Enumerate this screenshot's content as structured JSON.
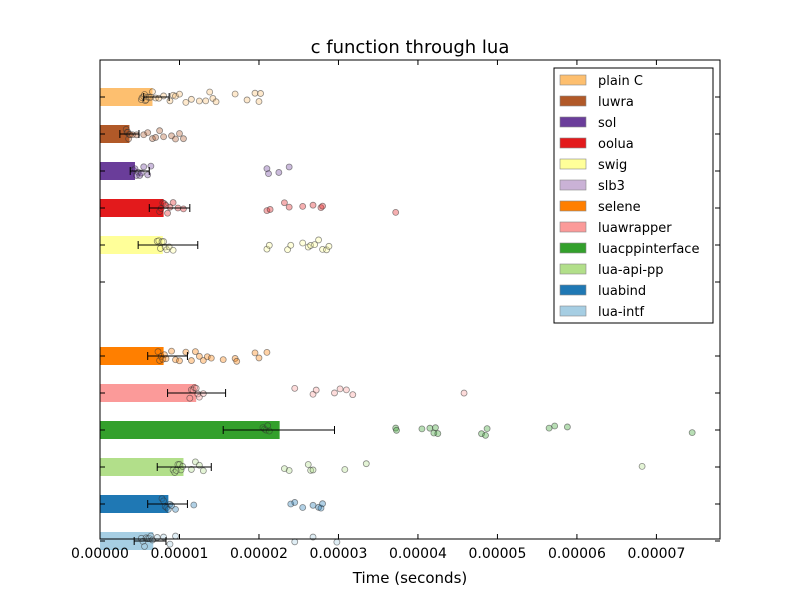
{
  "chart_data": {
    "type": "bar",
    "orientation": "horizontal",
    "title": "c function through lua",
    "xlabel": "Time (seconds)",
    "ylabel": "",
    "xlim": [
      0,
      7.8e-05
    ],
    "x_ticks": [
      0,
      1e-05,
      2e-05,
      3e-05,
      4e-05,
      5e-05,
      6e-05,
      7e-05
    ],
    "x_tick_labels": [
      "0.00000",
      "0.00001",
      "0.00002",
      "0.00003",
      "0.00004",
      "0.00005",
      "0.00006",
      "0.00007"
    ],
    "grid": false,
    "legend_position": "top-right",
    "gap_after_index": 5,
    "series": [
      {
        "name": "plain C",
        "color": "#fdbf6f",
        "value": 6.6e-06,
        "error": [
          5.5e-06,
          8.7e-06
        ],
        "points": [
          5.2e-06,
          5.3e-06,
          5.5e-06,
          5.6e-06,
          5.7e-06,
          5.8e-06,
          6e-06,
          6.2e-06,
          6.4e-06,
          6.6e-06,
          7e-06,
          7.4e-06,
          8e-06,
          8.8e-06,
          9.2e-06,
          9.5e-06,
          1e-05,
          1.08e-05,
          1.15e-05,
          1.25e-05,
          1.33e-05,
          1.38e-05,
          1.42e-05,
          1.46e-05,
          1.7e-05,
          1.85e-05,
          1.95e-05,
          2e-05,
          2.02e-05
        ]
      },
      {
        "name": "luwra",
        "color": "#b15928",
        "value": 3.7e-06,
        "error": [
          2.5e-06,
          4.9e-06
        ],
        "points": [
          3.3e-06,
          3.4e-06,
          3.5e-06,
          3.6e-06,
          3.7e-06,
          3.8e-06,
          4.1e-06,
          4.6e-06,
          5.5e-06,
          6e-06,
          6.6e-06,
          7e-06,
          7.5e-06,
          8e-06,
          9e-06,
          9.5e-06,
          1e-05,
          1.05e-05
        ]
      },
      {
        "name": "sol",
        "color": "#6a3d9a",
        "value": 4.4e-06,
        "error": [
          3.8e-06,
          6.2e-06
        ],
        "points": [
          4.2e-06,
          4.4e-06,
          4.6e-06,
          4.8e-06,
          5e-06,
          5.2e-06,
          5.5e-06,
          6e-06,
          6.4e-06,
          2.1e-05,
          2.12e-05,
          2.25e-05,
          2.38e-05
        ]
      },
      {
        "name": "oolua",
        "color": "#e31a1c",
        "value": 8e-06,
        "error": [
          6.2e-06,
          1.13e-05
        ],
        "points": [
          7.5e-06,
          7.7e-06,
          7.9e-06,
          8.1e-06,
          8.3e-06,
          8.5e-06,
          8.8e-06,
          9.2e-06,
          9.8e-06,
          1.05e-05,
          2.1e-05,
          2.14e-05,
          2.32e-05,
          2.38e-05,
          2.55e-05,
          2.68e-05,
          2.78e-05,
          2.8e-05,
          3.72e-05
        ]
      },
      {
        "name": "swig",
        "color": "#ffff99",
        "value": 7.9e-06,
        "error": [
          4.8e-06,
          1.23e-05
        ],
        "points": [
          7.2e-06,
          7.4e-06,
          7.6e-06,
          7.8e-06,
          8e-06,
          8.2e-06,
          8.4e-06,
          8.7e-06,
          9.2e-06,
          2.1e-05,
          2.13e-05,
          2.36e-05,
          2.4e-05,
          2.55e-05,
          2.62e-05,
          2.65e-05,
          2.7e-05,
          2.75e-05,
          2.8e-05,
          2.85e-05,
          2.88e-05
        ]
      },
      {
        "name": "slb3",
        "color": "#cab2d6",
        "value": null,
        "error": null,
        "points": []
      },
      {
        "name": "selene",
        "color": "#ff7f00",
        "value": 8e-06,
        "error": [
          6e-06,
          1.1e-05
        ],
        "points": [
          7.3e-06,
          7.5e-06,
          7.7e-06,
          7.9e-06,
          8.1e-06,
          8.3e-06,
          9e-06,
          9.5e-06,
          1e-05,
          1.08e-05,
          1.15e-05,
          1.2e-05,
          1.25e-05,
          1.3e-05,
          1.35e-05,
          1.4e-05,
          1.55e-05,
          1.7e-05,
          1.72e-05,
          1.95e-05,
          2e-05,
          2.1e-05
        ]
      },
      {
        "name": "luawrapper",
        "color": "#fb9a99",
        "value": 1.21e-05,
        "error": [
          8.5e-06,
          1.58e-05
        ],
        "points": [
          1.13e-05,
          1.15e-05,
          1.17e-05,
          1.19e-05,
          1.21e-05,
          1.23e-05,
          1.25e-05,
          1.3e-05,
          2.45e-05,
          2.68e-05,
          2.72e-05,
          2.95e-05,
          3.02e-05,
          3.1e-05,
          3.18e-05,
          4.58e-05
        ]
      },
      {
        "name": "luacppinterface",
        "color": "#33a02c",
        "value": 2.26e-05,
        "error": [
          1.55e-05,
          2.95e-05
        ],
        "points": [
          2.05e-05,
          2.07e-05,
          2.09e-05,
          2.11e-05,
          2.13e-05,
          3.72e-05,
          3.73e-05,
          4.05e-05,
          4.15e-05,
          4.2e-05,
          4.22e-05,
          4.25e-05,
          4.8e-05,
          4.85e-05,
          4.87e-05,
          5.65e-05,
          5.72e-05,
          5.88e-05,
          7.45e-05
        ]
      },
      {
        "name": "lua-api-pp",
        "color": "#b2df8a",
        "value": 1.05e-05,
        "error": [
          7.2e-06,
          1.4e-05
        ],
        "points": [
          9.2e-06,
          9.4e-06,
          9.6e-06,
          9.8e-06,
          1e-05,
          1.02e-05,
          1.04e-05,
          1.15e-05,
          1.2e-05,
          1.25e-05,
          1.3e-05,
          2.32e-05,
          2.38e-05,
          2.62e-05,
          2.65e-05,
          2.68e-05,
          3.08e-05,
          3.35e-05,
          6.82e-05
        ]
      },
      {
        "name": "luabind",
        "color": "#1f78b4",
        "value": 8.6e-06,
        "error": [
          6e-06,
          1.1e-05
        ],
        "points": [
          7.8e-06,
          8e-06,
          8.2e-06,
          8.4e-06,
          8.6e-06,
          8.8e-06,
          9e-06,
          9.5e-06,
          1.18e-05,
          2.4e-05,
          2.45e-05,
          2.55e-05,
          2.68e-05,
          2.75e-05,
          2.78e-05,
          2.8e-05
        ]
      },
      {
        "name": "lua-intf",
        "color": "#a6cee3",
        "value": 6.7e-06,
        "error": [
          4.3e-06,
          8.3e-06
        ],
        "points": [
          5.2e-06,
          5.4e-06,
          5.6e-06,
          5.8e-06,
          6e-06,
          6.2e-06,
          6.4e-06,
          6.6e-06,
          7.2e-06,
          8e-06,
          8.8e-06,
          9.5e-06,
          2.45e-05,
          2.68e-05,
          2.98e-05
        ]
      }
    ]
  }
}
